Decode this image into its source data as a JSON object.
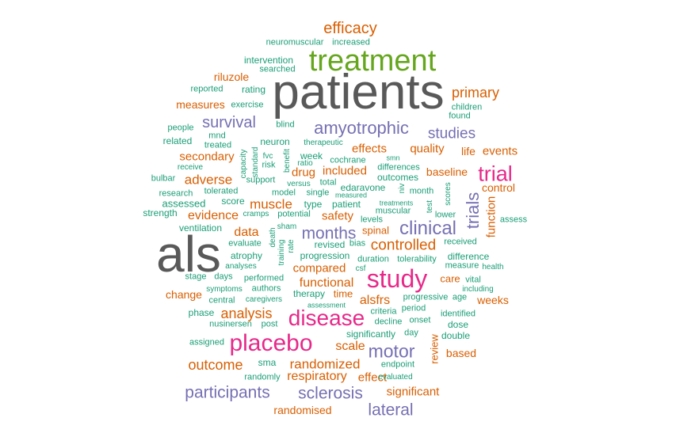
{
  "palette": {
    "grey": "#595959",
    "green": "#66a61e",
    "magenta": "#e7298a",
    "purple": "#7570b3",
    "orange": "#d95f02",
    "teal": "#1b9e77"
  },
  "words": [
    {
      "text": "patients",
      "color": "grey"
    },
    {
      "text": "als",
      "color": "grey"
    },
    {
      "text": "treatment",
      "color": "green"
    },
    {
      "text": "study",
      "color": "magenta"
    },
    {
      "text": "placebo",
      "color": "magenta"
    },
    {
      "text": "trial",
      "color": "magenta"
    },
    {
      "text": "disease",
      "color": "magenta"
    },
    {
      "text": "clinical",
      "color": "purple"
    },
    {
      "text": "trials",
      "color": "purple"
    },
    {
      "text": "amyotrophic",
      "color": "purple"
    },
    {
      "text": "months",
      "color": "purple"
    },
    {
      "text": "motor",
      "color": "purple"
    },
    {
      "text": "survival",
      "color": "purple"
    },
    {
      "text": "studies",
      "color": "purple"
    },
    {
      "text": "participants",
      "color": "purple"
    },
    {
      "text": "sclerosis",
      "color": "purple"
    },
    {
      "text": "lateral",
      "color": "purple"
    },
    {
      "text": "efficacy",
      "color": "orange"
    },
    {
      "text": "primary",
      "color": "orange"
    },
    {
      "text": "controlled",
      "color": "orange"
    },
    {
      "text": "analysis",
      "color": "orange"
    },
    {
      "text": "outcome",
      "color": "orange"
    },
    {
      "text": "randomized",
      "color": "orange"
    },
    {
      "text": "respiratory",
      "color": "orange"
    },
    {
      "text": "muscle",
      "color": "orange"
    },
    {
      "text": "adverse",
      "color": "orange"
    },
    {
      "text": "evidence",
      "color": "orange"
    },
    {
      "text": "data",
      "color": "orange"
    },
    {
      "text": "functional",
      "color": "orange"
    },
    {
      "text": "compared",
      "color": "orange"
    },
    {
      "text": "alsfrs",
      "color": "orange"
    },
    {
      "text": "scale",
      "color": "orange"
    },
    {
      "text": "significant",
      "color": "orange"
    },
    {
      "text": "effects",
      "color": "orange"
    },
    {
      "text": "quality",
      "color": "orange"
    },
    {
      "text": "life",
      "color": "orange"
    },
    {
      "text": "events",
      "color": "orange"
    },
    {
      "text": "secondary",
      "color": "orange"
    },
    {
      "text": "included",
      "color": "orange"
    },
    {
      "text": "drug",
      "color": "orange"
    },
    {
      "text": "baseline",
      "color": "orange"
    },
    {
      "text": "function",
      "color": "orange"
    },
    {
      "text": "control",
      "color": "orange"
    },
    {
      "text": "safety",
      "color": "orange"
    },
    {
      "text": "effect",
      "color": "orange"
    },
    {
      "text": "riluzole",
      "color": "orange"
    },
    {
      "text": "measures",
      "color": "orange"
    },
    {
      "text": "spinal",
      "color": "orange"
    },
    {
      "text": "care",
      "color": "orange"
    },
    {
      "text": "weeks",
      "color": "orange"
    },
    {
      "text": "change",
      "color": "orange"
    },
    {
      "text": "based",
      "color": "orange"
    },
    {
      "text": "review",
      "color": "orange"
    },
    {
      "text": "randomised",
      "color": "orange"
    },
    {
      "text": "time",
      "color": "orange"
    },
    {
      "text": "neuromuscular",
      "color": "teal"
    },
    {
      "text": "increased",
      "color": "teal"
    },
    {
      "text": "intervention",
      "color": "teal"
    },
    {
      "text": "searched",
      "color": "teal"
    },
    {
      "text": "rating",
      "color": "teal"
    },
    {
      "text": "reported",
      "color": "teal"
    },
    {
      "text": "exercise",
      "color": "teal"
    },
    {
      "text": "children",
      "color": "teal"
    },
    {
      "text": "found",
      "color": "teal"
    },
    {
      "text": "people",
      "color": "teal"
    },
    {
      "text": "mnd",
      "color": "teal"
    },
    {
      "text": "related",
      "color": "teal"
    },
    {
      "text": "treated",
      "color": "teal"
    },
    {
      "text": "blind",
      "color": "teal"
    },
    {
      "text": "neuron",
      "color": "teal"
    },
    {
      "text": "therapeutic",
      "color": "teal"
    },
    {
      "text": "capacity",
      "color": "teal"
    },
    {
      "text": "standard",
      "color": "teal"
    },
    {
      "text": "fvc",
      "color": "teal"
    },
    {
      "text": "risk",
      "color": "teal"
    },
    {
      "text": "benefit",
      "color": "teal"
    },
    {
      "text": "ratio",
      "color": "teal"
    },
    {
      "text": "week",
      "color": "teal"
    },
    {
      "text": "cochrane",
      "color": "teal"
    },
    {
      "text": "smn",
      "color": "teal"
    },
    {
      "text": "receive",
      "color": "teal"
    },
    {
      "text": "differences",
      "color": "teal"
    },
    {
      "text": "bulbar",
      "color": "teal"
    },
    {
      "text": "support",
      "color": "teal"
    },
    {
      "text": "versus",
      "color": "teal"
    },
    {
      "text": "total",
      "color": "teal"
    },
    {
      "text": "outcomes",
      "color": "teal"
    },
    {
      "text": "research",
      "color": "teal"
    },
    {
      "text": "tolerated",
      "color": "teal"
    },
    {
      "text": "model",
      "color": "teal"
    },
    {
      "text": "single",
      "color": "teal"
    },
    {
      "text": "edaravone",
      "color": "teal"
    },
    {
      "text": "month",
      "color": "teal"
    },
    {
      "text": "niv",
      "color": "teal"
    },
    {
      "text": "measured",
      "color": "teal"
    },
    {
      "text": "assessed",
      "color": "teal"
    },
    {
      "text": "score",
      "color": "teal"
    },
    {
      "text": "type",
      "color": "teal"
    },
    {
      "text": "patient",
      "color": "teal"
    },
    {
      "text": "test",
      "color": "teal"
    },
    {
      "text": "scores",
      "color": "teal"
    },
    {
      "text": "strength",
      "color": "teal"
    },
    {
      "text": "cramps",
      "color": "teal"
    },
    {
      "text": "potential",
      "color": "teal"
    },
    {
      "text": "levels",
      "color": "teal"
    },
    {
      "text": "treatments",
      "color": "teal"
    },
    {
      "text": "muscular",
      "color": "teal"
    },
    {
      "text": "lower",
      "color": "teal"
    },
    {
      "text": "assess",
      "color": "teal"
    },
    {
      "text": "ventilation",
      "color": "teal"
    },
    {
      "text": "sham",
      "color": "teal"
    },
    {
      "text": "death",
      "color": "teal"
    },
    {
      "text": "evaluate",
      "color": "teal"
    },
    {
      "text": "revised",
      "color": "teal"
    },
    {
      "text": "bias",
      "color": "teal"
    },
    {
      "text": "received",
      "color": "teal"
    },
    {
      "text": "atrophy",
      "color": "teal"
    },
    {
      "text": "rate",
      "color": "teal"
    },
    {
      "text": "training",
      "color": "teal"
    },
    {
      "text": "progression",
      "color": "teal"
    },
    {
      "text": "duration",
      "color": "teal"
    },
    {
      "text": "tolerability",
      "color": "teal"
    },
    {
      "text": "difference",
      "color": "teal"
    },
    {
      "text": "analyses",
      "color": "teal"
    },
    {
      "text": "csf",
      "color": "teal"
    },
    {
      "text": "measure",
      "color": "teal"
    },
    {
      "text": "health",
      "color": "teal"
    },
    {
      "text": "stage",
      "color": "teal"
    },
    {
      "text": "days",
      "color": "teal"
    },
    {
      "text": "performed",
      "color": "teal"
    },
    {
      "text": "vital",
      "color": "teal"
    },
    {
      "text": "symptoms",
      "color": "teal"
    },
    {
      "text": "authors",
      "color": "teal"
    },
    {
      "text": "including",
      "color": "teal"
    },
    {
      "text": "therapy",
      "color": "teal"
    },
    {
      "text": "progressive",
      "color": "teal"
    },
    {
      "text": "age",
      "color": "teal"
    },
    {
      "text": "central",
      "color": "teal"
    },
    {
      "text": "caregivers",
      "color": "teal"
    },
    {
      "text": "assessment",
      "color": "teal"
    },
    {
      "text": "period",
      "color": "teal"
    },
    {
      "text": "phase",
      "color": "teal"
    },
    {
      "text": "criteria",
      "color": "teal"
    },
    {
      "text": "identified",
      "color": "teal"
    },
    {
      "text": "nusinersen",
      "color": "teal"
    },
    {
      "text": "post",
      "color": "teal"
    },
    {
      "text": "decline",
      "color": "teal"
    },
    {
      "text": "onset",
      "color": "teal"
    },
    {
      "text": "dose",
      "color": "teal"
    },
    {
      "text": "assigned",
      "color": "teal"
    },
    {
      "text": "significantly",
      "color": "teal"
    },
    {
      "text": "day",
      "color": "teal"
    },
    {
      "text": "double",
      "color": "teal"
    },
    {
      "text": "sma",
      "color": "teal"
    },
    {
      "text": "endpoint",
      "color": "teal"
    },
    {
      "text": "randomly",
      "color": "teal"
    },
    {
      "text": "evaluated",
      "color": "teal"
    }
  ]
}
